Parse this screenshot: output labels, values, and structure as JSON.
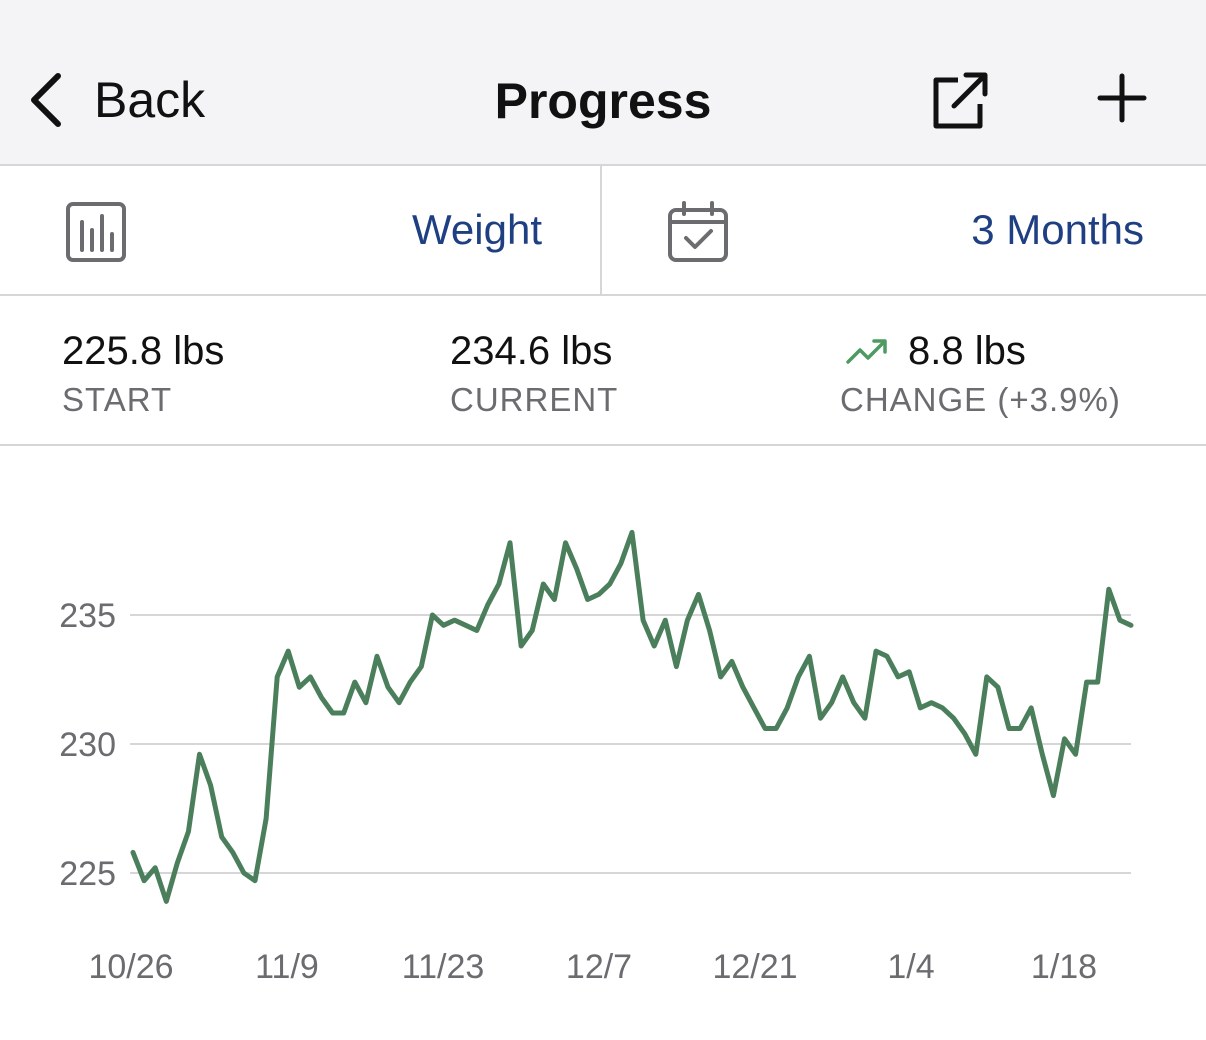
{
  "navbar": {
    "back_label": "Back",
    "title": "Progress",
    "share_icon": "share-external-icon",
    "add_icon": "plus-icon"
  },
  "selectors": {
    "metric": {
      "icon": "bar-chart-icon",
      "value": "Weight"
    },
    "range": {
      "icon": "calendar-check-icon",
      "value": "3 Months"
    }
  },
  "stats": {
    "start": {
      "value": "225.8 lbs",
      "label": "START"
    },
    "current": {
      "value": "234.6 lbs",
      "label": "CURRENT"
    },
    "change": {
      "value": "8.8 lbs",
      "label": "CHANGE (+3.9%)",
      "trend_icon": "trend-up-icon",
      "trend_color": "#4f9a62"
    }
  },
  "colors": {
    "accent": "#1e3f82",
    "line": "#4b7f5c",
    "grid": "#d6d6d8",
    "label": "#6b6b70"
  },
  "chart_data": {
    "type": "line",
    "title": "",
    "xlabel": "",
    "ylabel": "",
    "x_ticks": [
      "10/26",
      "11/9",
      "11/23",
      "12/7",
      "12/21",
      "1/4",
      "1/18"
    ],
    "y_ticks": [
      225,
      230,
      235
    ],
    "ylim": [
      223,
      239
    ],
    "grid": true,
    "series": [
      {
        "values": [
          225.8,
          224.7,
          225.2,
          223.9,
          225.4,
          226.6,
          229.6,
          228.4,
          226.4,
          225.8,
          225.0,
          224.7,
          227.1,
          232.6,
          233.6,
          232.2,
          232.6,
          231.8,
          231.2,
          231.2,
          232.4,
          231.6,
          233.4,
          232.2,
          231.6,
          232.4,
          233.0,
          235.0,
          234.6,
          234.8,
          234.6,
          234.4,
          235.4,
          236.2,
          237.8,
          233.8,
          234.4,
          236.2,
          235.6,
          237.8,
          236.8,
          235.6,
          235.8,
          236.2,
          237.0,
          238.2,
          234.8,
          233.8,
          234.8,
          233.0,
          234.8,
          235.8,
          234.4,
          232.6,
          233.2,
          232.2,
          231.4,
          230.6,
          230.6,
          231.4,
          232.6,
          233.4,
          231.0,
          231.6,
          232.6,
          231.6,
          231.0,
          233.6,
          233.4,
          232.6,
          232.8,
          231.4,
          231.6,
          231.4,
          231.0,
          230.4,
          229.6,
          232.6,
          232.2,
          230.6,
          230.6,
          231.4,
          229.6,
          228.0,
          230.2,
          229.6,
          232.4,
          232.4,
          236.0,
          234.8,
          234.6
        ]
      }
    ]
  }
}
